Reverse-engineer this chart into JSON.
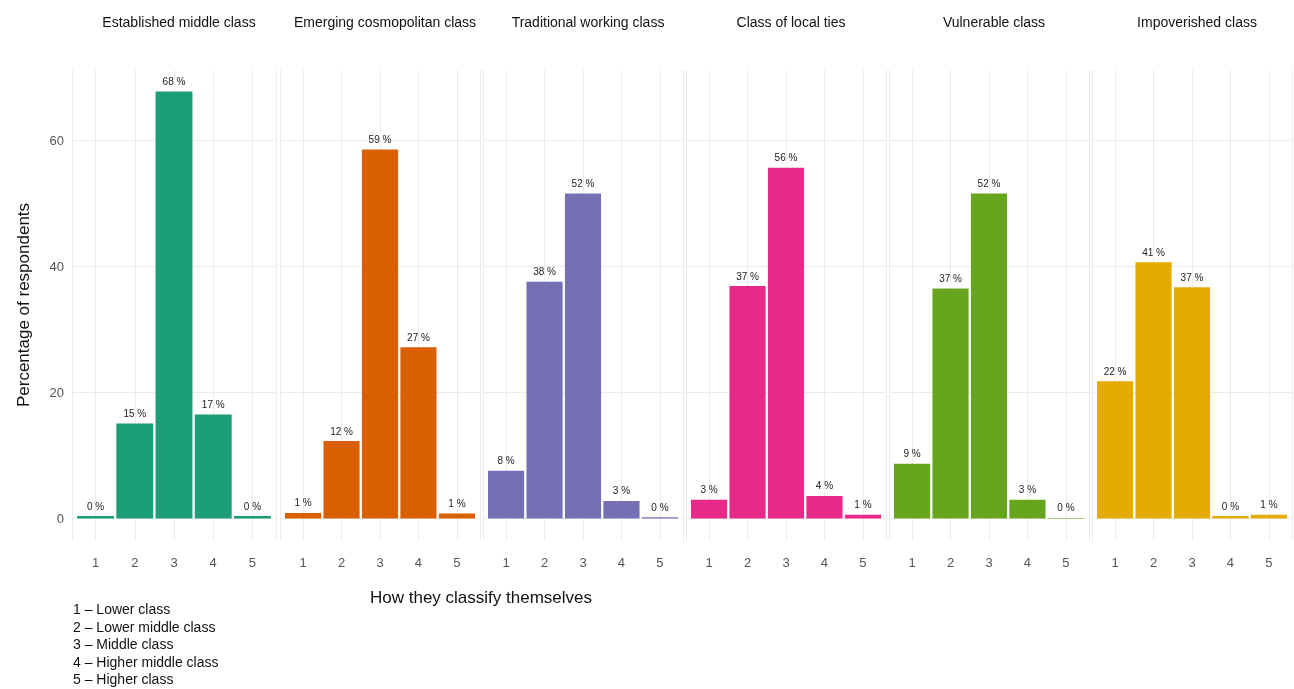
{
  "chart_data": [
    {
      "type": "bar",
      "title": "Established middle class",
      "ylabel": "Percentage of respondents",
      "categories": [
        "1",
        "2",
        "3",
        "4",
        "5"
      ],
      "values": [
        0.4,
        15.1,
        67.8,
        16.5,
        0.4
      ],
      "value_labels": [
        "0 %",
        "15 %",
        "68 %",
        "17 %",
        "0 %"
      ],
      "color": "#1b9e77",
      "ylim": [
        -3.4,
        71.2
      ],
      "yticks": [
        0,
        20,
        40,
        60
      ],
      "grid": true,
      "annotations": [
        "1 – Lower class",
        "2 – Lower middle class",
        "3 – Middle class",
        "4 – Higher middle class",
        "5 – Higher class"
      ]
    },
    {
      "type": "bar",
      "title": "Emerging cosmopolitan class",
      "categories": [
        "1",
        "2",
        "3",
        "4",
        "5"
      ],
      "values": [
        0.9,
        12.3,
        58.6,
        27.2,
        0.8
      ],
      "value_labels": [
        "1 %",
        "12 %",
        "59 %",
        "27 %",
        "1 %"
      ],
      "color": "#d95f02",
      "ylim": [
        -3.4,
        71.2
      ],
      "yticks": [
        0,
        20,
        40,
        60
      ],
      "grid": true,
      "tick_labels": "x"
    },
    {
      "type": "bar",
      "title": "Traditional working class",
      "xlabel": "How they classify themselves",
      "categories": [
        "1",
        "2",
        "3",
        "4",
        "5"
      ],
      "values": [
        7.6,
        37.6,
        51.6,
        2.8,
        0.2
      ],
      "value_labels": [
        "8 %",
        "38 %",
        "52 %",
        "3 %",
        "0 %"
      ],
      "color": "#7570b3",
      "ylim": [
        -3.4,
        71.2
      ],
      "yticks": [
        0,
        20,
        40,
        60
      ],
      "grid": true,
      "tick_labels": "x"
    },
    {
      "type": "bar",
      "title": "Class of local ties",
      "categories": [
        "1",
        "2",
        "3",
        "4",
        "5"
      ],
      "values": [
        3.0,
        36.9,
        55.7,
        3.6,
        0.6
      ],
      "value_labels": [
        "3 %",
        "37 %",
        "56 %",
        "4 %",
        "1 %"
      ],
      "color": "#e7298a",
      "ylim": [
        -3.4,
        71.2
      ],
      "yticks": [
        0,
        20,
        40,
        60
      ],
      "grid": true,
      "tick_labels": "x"
    },
    {
      "type": "bar",
      "title": "Vulnerable class",
      "categories": [
        "1",
        "2",
        "3",
        "4",
        "5"
      ],
      "values": [
        8.7,
        36.5,
        51.6,
        3.0,
        0.1
      ],
      "value_labels": [
        "9 %",
        "37 %",
        "52 %",
        "3 %",
        "0 %"
      ],
      "color": "#66a61e",
      "ylim": [
        -3.4,
        71.2
      ],
      "yticks": [
        0,
        20,
        40,
        60
      ],
      "grid": true,
      "tick_labels": "x"
    },
    {
      "type": "bar",
      "title": "Impoverished class",
      "categories": [
        "1",
        "2",
        "3",
        "4",
        "5"
      ],
      "values": [
        21.8,
        40.7,
        36.7,
        0.4,
        0.6
      ],
      "value_labels": [
        "22 %",
        "41 %",
        "37 %",
        "0 %",
        "1 %"
      ],
      "color": "#e6ab02",
      "ylim": [
        -3.4,
        71.2
      ],
      "yticks": [
        0,
        20,
        40,
        60
      ],
      "grid": true,
      "tick_labels": "x"
    }
  ]
}
